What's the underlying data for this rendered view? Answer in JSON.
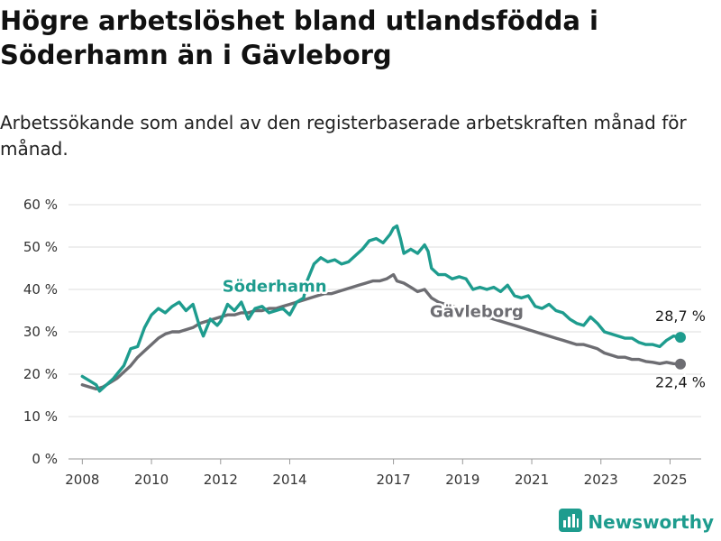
{
  "header": {
    "title": "Högre arbetslöshet bland utlandsfödda i Söderhamn än i Gävleborg",
    "subtitle": "Arbetssökande som andel av den registerbaserade arbetskraften månad för månad."
  },
  "brand": {
    "name": "Newsworthy",
    "icon": "newsworthy-logo-icon",
    "color": "#1e9c8e"
  },
  "chart_data": {
    "type": "line",
    "ylim": [
      0,
      60
    ],
    "yticks": [
      0,
      10,
      20,
      30,
      40,
      50,
      60
    ],
    "ytick_labels": [
      "0 %",
      "10 %",
      "20 %",
      "30 %",
      "40 %",
      "50 %",
      "60 %"
    ],
    "xlim": [
      2007.6,
      2025.9
    ],
    "xticks": [
      2008,
      2010,
      2012,
      2014,
      2017,
      2019,
      2021,
      2023,
      2025
    ],
    "xtick_labels": [
      "2008",
      "2010",
      "2012",
      "2014",
      "2017",
      "2019",
      "2021",
      "2023",
      "2025"
    ],
    "grid": true,
    "series": [
      {
        "name": "Söderhamn",
        "color": "#1e9c8e",
        "end_label": "28,7 %",
        "points": [
          [
            2008.0,
            19.5
          ],
          [
            2008.2,
            18.5
          ],
          [
            2008.4,
            17.5
          ],
          [
            2008.5,
            16.0
          ],
          [
            2008.7,
            17.5
          ],
          [
            2008.9,
            19.0
          ],
          [
            2009.0,
            20.0
          ],
          [
            2009.2,
            22.0
          ],
          [
            2009.4,
            26.0
          ],
          [
            2009.6,
            26.5
          ],
          [
            2009.8,
            31.0
          ],
          [
            2010.0,
            34.0
          ],
          [
            2010.2,
            35.5
          ],
          [
            2010.4,
            34.5
          ],
          [
            2010.6,
            36.0
          ],
          [
            2010.8,
            37.0
          ],
          [
            2011.0,
            35.0
          ],
          [
            2011.2,
            36.5
          ],
          [
            2011.4,
            31.0
          ],
          [
            2011.5,
            29.0
          ],
          [
            2011.7,
            33.0
          ],
          [
            2011.9,
            31.5
          ],
          [
            2012.0,
            32.5
          ],
          [
            2012.2,
            36.5
          ],
          [
            2012.4,
            35.0
          ],
          [
            2012.6,
            37.0
          ],
          [
            2012.8,
            33.0
          ],
          [
            2013.0,
            35.5
          ],
          [
            2013.2,
            36.0
          ],
          [
            2013.4,
            34.5
          ],
          [
            2013.6,
            35.0
          ],
          [
            2013.8,
            35.5
          ],
          [
            2014.0,
            34.0
          ],
          [
            2014.2,
            37.0
          ],
          [
            2014.4,
            38.0
          ],
          [
            2014.5,
            42.0
          ],
          [
            2014.7,
            46.0
          ],
          [
            2014.9,
            47.5
          ],
          [
            2015.1,
            46.5
          ],
          [
            2015.3,
            47.0
          ],
          [
            2015.5,
            46.0
          ],
          [
            2015.7,
            46.5
          ],
          [
            2015.9,
            48.0
          ],
          [
            2016.1,
            49.5
          ],
          [
            2016.3,
            51.5
          ],
          [
            2016.5,
            52.0
          ],
          [
            2016.7,
            51.0
          ],
          [
            2016.9,
            53.0
          ],
          [
            2017.0,
            54.5
          ],
          [
            2017.1,
            55.0
          ],
          [
            2017.2,
            52.0
          ],
          [
            2017.3,
            48.5
          ],
          [
            2017.5,
            49.5
          ],
          [
            2017.7,
            48.5
          ],
          [
            2017.9,
            50.5
          ],
          [
            2018.0,
            49.0
          ],
          [
            2018.1,
            45.0
          ],
          [
            2018.3,
            43.5
          ],
          [
            2018.5,
            43.5
          ],
          [
            2018.7,
            42.5
          ],
          [
            2018.9,
            43.0
          ],
          [
            2019.1,
            42.5
          ],
          [
            2019.3,
            40.0
          ],
          [
            2019.5,
            40.5
          ],
          [
            2019.7,
            40.0
          ],
          [
            2019.9,
            40.5
          ],
          [
            2020.1,
            39.5
          ],
          [
            2020.3,
            41.0
          ],
          [
            2020.5,
            38.5
          ],
          [
            2020.7,
            38.0
          ],
          [
            2020.9,
            38.5
          ],
          [
            2021.1,
            36.0
          ],
          [
            2021.3,
            35.5
          ],
          [
            2021.5,
            36.5
          ],
          [
            2021.7,
            35.0
          ],
          [
            2021.9,
            34.5
          ],
          [
            2022.1,
            33.0
          ],
          [
            2022.3,
            32.0
          ],
          [
            2022.5,
            31.5
          ],
          [
            2022.7,
            33.5
          ],
          [
            2022.9,
            32.0
          ],
          [
            2023.1,
            30.0
          ],
          [
            2023.3,
            29.5
          ],
          [
            2023.5,
            29.0
          ],
          [
            2023.7,
            28.5
          ],
          [
            2023.9,
            28.5
          ],
          [
            2024.1,
            27.5
          ],
          [
            2024.3,
            27.0
          ],
          [
            2024.5,
            27.0
          ],
          [
            2024.7,
            26.5
          ],
          [
            2024.9,
            28.0
          ],
          [
            2025.1,
            29.0
          ],
          [
            2025.3,
            28.7
          ]
        ]
      },
      {
        "name": "Gävleborg",
        "color": "#6d6d72",
        "end_label": "22,4 %",
        "points": [
          [
            2008.0,
            17.5
          ],
          [
            2008.2,
            17.0
          ],
          [
            2008.4,
            16.5
          ],
          [
            2008.6,
            17.0
          ],
          [
            2008.8,
            18.0
          ],
          [
            2009.0,
            19.0
          ],
          [
            2009.2,
            20.5
          ],
          [
            2009.4,
            22.0
          ],
          [
            2009.6,
            24.0
          ],
          [
            2009.8,
            25.5
          ],
          [
            2010.0,
            27.0
          ],
          [
            2010.2,
            28.5
          ],
          [
            2010.4,
            29.5
          ],
          [
            2010.6,
            30.0
          ],
          [
            2010.8,
            30.0
          ],
          [
            2011.0,
            30.5
          ],
          [
            2011.2,
            31.0
          ],
          [
            2011.4,
            32.0
          ],
          [
            2011.6,
            32.5
          ],
          [
            2011.8,
            33.0
          ],
          [
            2012.0,
            33.5
          ],
          [
            2012.2,
            34.0
          ],
          [
            2012.4,
            34.0
          ],
          [
            2012.6,
            34.5
          ],
          [
            2012.8,
            34.5
          ],
          [
            2013.0,
            35.0
          ],
          [
            2013.2,
            35.0
          ],
          [
            2013.4,
            35.5
          ],
          [
            2013.6,
            35.5
          ],
          [
            2013.8,
            36.0
          ],
          [
            2014.0,
            36.5
          ],
          [
            2014.2,
            37.0
          ],
          [
            2014.4,
            37.5
          ],
          [
            2014.6,
            38.0
          ],
          [
            2014.8,
            38.5
          ],
          [
            2015.0,
            39.0
          ],
          [
            2015.2,
            39.0
          ],
          [
            2015.4,
            39.5
          ],
          [
            2015.6,
            40.0
          ],
          [
            2015.8,
            40.5
          ],
          [
            2016.0,
            41.0
          ],
          [
            2016.2,
            41.5
          ],
          [
            2016.4,
            42.0
          ],
          [
            2016.6,
            42.0
          ],
          [
            2016.8,
            42.5
          ],
          [
            2017.0,
            43.5
          ],
          [
            2017.1,
            42.0
          ],
          [
            2017.3,
            41.5
          ],
          [
            2017.5,
            40.5
          ],
          [
            2017.7,
            39.5
          ],
          [
            2017.9,
            40.0
          ],
          [
            2018.1,
            38.0
          ],
          [
            2018.3,
            37.0
          ],
          [
            2018.5,
            36.5
          ],
          [
            2018.7,
            36.0
          ],
          [
            2018.9,
            35.5
          ],
          [
            2019.1,
            35.0
          ],
          [
            2019.3,
            34.5
          ],
          [
            2019.5,
            34.0
          ],
          [
            2019.7,
            33.5
          ],
          [
            2019.9,
            33.0
          ],
          [
            2020.1,
            32.5
          ],
          [
            2020.3,
            32.0
          ],
          [
            2020.5,
            31.5
          ],
          [
            2020.7,
            31.0
          ],
          [
            2020.9,
            30.5
          ],
          [
            2021.1,
            30.0
          ],
          [
            2021.3,
            29.5
          ],
          [
            2021.5,
            29.0
          ],
          [
            2021.7,
            28.5
          ],
          [
            2021.9,
            28.0
          ],
          [
            2022.1,
            27.5
          ],
          [
            2022.3,
            27.0
          ],
          [
            2022.5,
            27.0
          ],
          [
            2022.7,
            26.5
          ],
          [
            2022.9,
            26.0
          ],
          [
            2023.1,
            25.0
          ],
          [
            2023.3,
            24.5
          ],
          [
            2023.5,
            24.0
          ],
          [
            2023.7,
            24.0
          ],
          [
            2023.9,
            23.5
          ],
          [
            2024.1,
            23.5
          ],
          [
            2024.3,
            23.0
          ],
          [
            2024.5,
            22.8
          ],
          [
            2024.7,
            22.5
          ],
          [
            2024.9,
            22.8
          ],
          [
            2025.1,
            22.5
          ],
          [
            2025.3,
            22.4
          ]
        ]
      }
    ]
  }
}
